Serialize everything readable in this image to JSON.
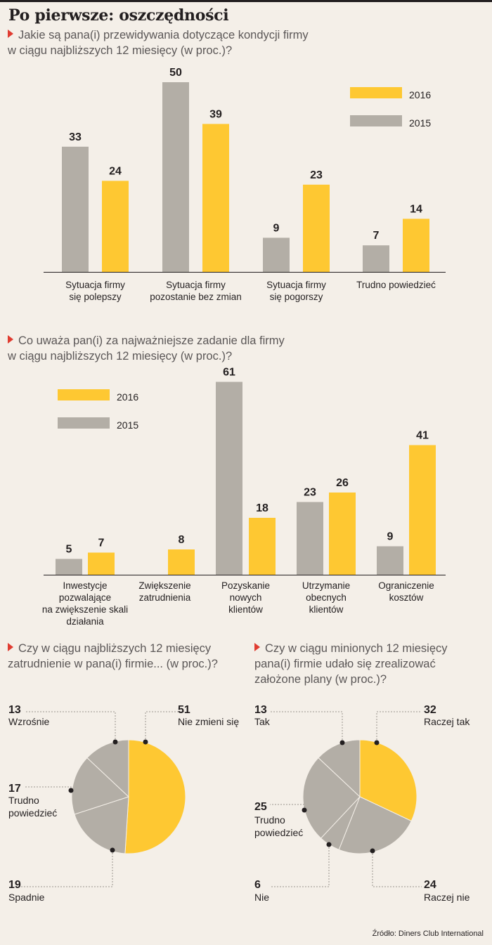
{
  "title": "Po pierwsze: oszczędności",
  "source": "Źródło: Diners Club International",
  "colors": {
    "y2016": "#fec832",
    "y2015": "#b3aea6",
    "text": "#231f20",
    "marker": "#e03c31"
  },
  "chart_data": [
    {
      "type": "bar",
      "question": [
        "Jakie są pana(i) przewidywania dotyczące kondycji firmy",
        "w ciągu najbliższych 12 miesięcy (w proc.)?"
      ],
      "categories": [
        [
          "Sytuacja firmy",
          "się polepszy"
        ],
        [
          "Sytuacja firmy",
          "pozostanie bez zmian"
        ],
        [
          "Sytuacja firmy",
          "się pogorszy"
        ],
        [
          "Trudno powiedzieć"
        ]
      ],
      "series": [
        {
          "name": "2015",
          "values": [
            33,
            50,
            9,
            7
          ]
        },
        {
          "name": "2016",
          "values": [
            24,
            39,
            23,
            14
          ]
        }
      ],
      "legend": [
        "2016",
        "2015"
      ],
      "legend_position": "top-right",
      "ylim": [
        0,
        55
      ]
    },
    {
      "type": "bar",
      "question": [
        "Co uważa pan(i) za najważniejsze zadanie dla firmy",
        "w ciągu najbliższych 12 miesięcy (w proc.)?"
      ],
      "categories": [
        [
          "Inwestycje",
          "pozwalające",
          "na zwiększenie skali",
          "działania"
        ],
        [
          "Zwiększenie",
          "zatrudnienia"
        ],
        [
          "Pozyskanie",
          "nowych",
          "klientów"
        ],
        [
          "Utrzymanie",
          "obecnych",
          "klientów"
        ],
        [
          "Ograniczenie",
          "kosztów"
        ]
      ],
      "series": [
        {
          "name": "2015",
          "values": [
            5,
            null,
            61,
            23,
            9
          ]
        },
        {
          "name": "2016",
          "values": [
            7,
            8,
            18,
            26,
            41
          ]
        }
      ],
      "legend": [
        "2016",
        "2015"
      ],
      "legend_position": "top-left",
      "ylim": [
        0,
        66
      ]
    },
    {
      "type": "pie",
      "question": [
        "Czy w ciągu najbliższych 12 miesięcy",
        "zatrudnienie w pana(i) firmie... (w proc.)?"
      ],
      "slices": [
        {
          "label": [
            "Nie zmieni się"
          ],
          "value": 51,
          "color": "#fec832"
        },
        {
          "label": [
            "Spadnie"
          ],
          "value": 19,
          "color": "#b3aea6"
        },
        {
          "label": [
            "Trudno",
            "powiedzieć"
          ],
          "value": 17,
          "color": "#b3aea6"
        },
        {
          "label": [
            "Wzrośnie"
          ],
          "value": 13,
          "color": "#b3aea6"
        }
      ]
    },
    {
      "type": "pie",
      "question": [
        "Czy w ciągu minionych 12 miesięcy",
        "pana(i) firmie udało się zrealizować",
        "założone plany (w proc.)?"
      ],
      "slices": [
        {
          "label": [
            "Raczej tak"
          ],
          "value": 32,
          "color": "#fec832"
        },
        {
          "label": [
            "Raczej nie"
          ],
          "value": 24,
          "color": "#b3aea6"
        },
        {
          "label": [
            "Nie"
          ],
          "value": 6,
          "color": "#b3aea6"
        },
        {
          "label": [
            "Trudno",
            "powiedzieć"
          ],
          "value": 25,
          "color": "#b3aea6"
        },
        {
          "label": [
            "Tak"
          ],
          "value": 13,
          "color": "#b3aea6"
        }
      ]
    }
  ]
}
